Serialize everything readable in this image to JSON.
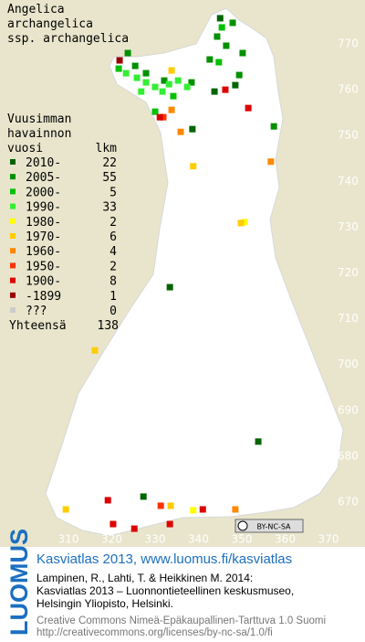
{
  "header": {
    "title_lines": [
      "Angelica",
      "archangelica",
      "ssp. archangelica"
    ]
  },
  "legend": {
    "heading_lines": [
      "Vuusimman",
      "havainnon"
    ],
    "col_year": "vuosi",
    "col_count": "lkm",
    "rows": [
      {
        "label": "2010-",
        "count": 22,
        "color": "#006400",
        "points": [
          [
            333.4,
            716.9
          ],
          [
            353.8,
            683.2
          ],
          [
            327.3,
            671.2
          ],
          [
            338.6,
            751.4
          ],
          [
            343.7,
            759.6
          ],
          [
            348.5,
            761
          ],
          [
            345,
            775.6
          ]
        ]
      },
      {
        "label": "2005-",
        "count": 55,
        "color": "#009000",
        "points": [
          [
            344.3,
            771.6
          ],
          [
            346.4,
            769.6
          ],
          [
            347.9,
            774.6
          ],
          [
            342.6,
            766.6
          ],
          [
            323.7,
            768
          ],
          [
            325.4,
            765.2
          ],
          [
            327.9,
            763.6
          ],
          [
            349.4,
            763.2
          ],
          [
            357.4,
            752
          ],
          [
            338.4,
            761.6
          ],
          [
            332.1,
            762
          ],
          [
            350.2,
            768
          ]
        ]
      },
      {
        "label": "2000-",
        "count": 5,
        "color": "#00c000",
        "points": [
          [
            345.4,
            773.6
          ],
          [
            321.6,
            764.6
          ],
          [
            334.2,
            758.6
          ],
          [
            330,
            755.2
          ],
          [
            344.7,
            766
          ]
        ]
      },
      {
        "label": "1990-",
        "count": 33,
        "color": "#33ee33",
        "points": [
          [
            327.9,
            761.6
          ],
          [
            330,
            760.6
          ],
          [
            333.2,
            761.2
          ],
          [
            325.8,
            762.6
          ],
          [
            335.3,
            762
          ],
          [
            337.4,
            760.6
          ],
          [
            323.3,
            763.6
          ],
          [
            326.8,
            759.6
          ],
          [
            331.7,
            759.6
          ]
        ]
      },
      {
        "label": "1980-",
        "count": 2,
        "color": "#ffff00",
        "points": [
          [
            350.6,
            731.1
          ],
          [
            338.8,
            668.2
          ]
        ]
      },
      {
        "label": "1970-",
        "count": 6,
        "color": "#ffcc00",
        "points": [
          [
            333.8,
            764.2
          ],
          [
            316.1,
            703.1
          ],
          [
            338.8,
            743.3
          ],
          [
            309.4,
            668.4
          ],
          [
            333.6,
            669.2
          ],
          [
            349.8,
            730.9
          ]
        ]
      },
      {
        "label": "1960-",
        "count": 4,
        "color": "#ff8800",
        "points": [
          [
            356.7,
            744.3
          ],
          [
            335.9,
            750.8
          ],
          [
            348.5,
            668.4
          ],
          [
            333.8,
            755.6
          ]
        ]
      },
      {
        "label": "1950-",
        "count": 2,
        "color": "#ff3300",
        "points": [
          [
            331.9,
            754
          ],
          [
            331.3,
            669.2
          ]
        ]
      },
      {
        "label": "1900-",
        "count": 8,
        "color": "#dd0000",
        "points": [
          [
            319.1,
            670.4
          ],
          [
            320.3,
            665.2
          ],
          [
            325.2,
            664.2
          ],
          [
            341,
            668.4
          ],
          [
            346.2,
            760
          ],
          [
            331.1,
            754
          ],
          [
            333.4,
            665.2
          ],
          [
            351.5,
            756
          ]
        ]
      },
      {
        "label": "-1899",
        "count": 1,
        "color": "#990000",
        "points": [
          [
            321.8,
            766.4
          ]
        ]
      },
      {
        "label": "???",
        "count": 0,
        "color": "#cccccc",
        "points": []
      }
    ],
    "total_label": "Yhteensä",
    "total": 138
  },
  "map": {
    "xticks": [
      310,
      320,
      330,
      340,
      350,
      360,
      370
    ],
    "yticks": [
      670,
      680,
      690,
      700,
      710,
      720,
      730,
      740,
      750,
      760,
      770
    ],
    "badge": "BY-NC-SA"
  },
  "footer": {
    "brand": "LUOMUS",
    "link": "Kasviatlas 2013, www.luomus.fi/kasviatlas",
    "citation_lines": [
      "Lampinen, R., Lahti, T. & Heikkinen M. 2014:",
      "Kasviatlas 2013 – Luonnontieteellinen keskusmuseo,",
      "Helsingin Yliopisto, Helsinki."
    ],
    "license_lines": [
      "Creative Commons Nimeä-Epäkaupallinen-Tarttuva 1.0 Suomi",
      "http://creativecommons.org/licenses/by-nc-sa/1.0/fi"
    ]
  }
}
